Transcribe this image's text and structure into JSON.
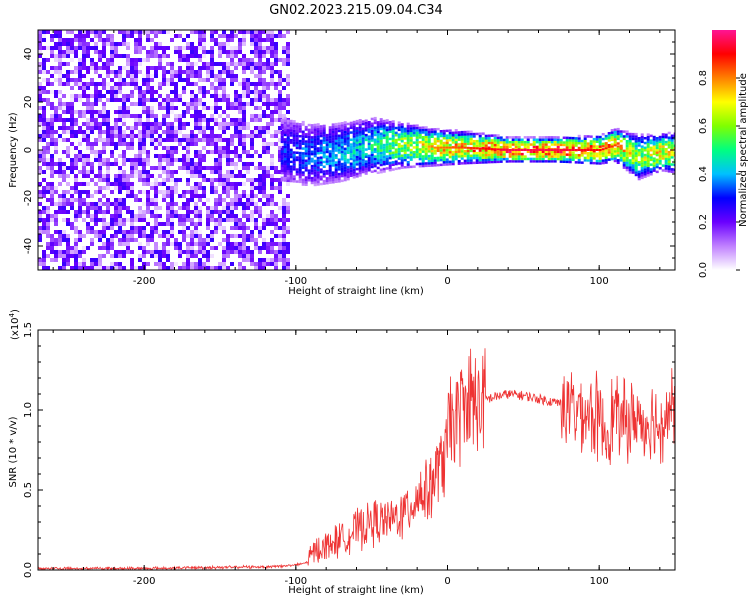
{
  "title": "GN02.2023.215.09.04.C34",
  "chart_data": [
    {
      "type": "heatmap",
      "xlabel": "Height of straight line (km)",
      "ylabel": "Frequency (Hz)",
      "xlim": [
        -270,
        150
      ],
      "ylim": [
        -50,
        50
      ],
      "x_ticks": [
        -200,
        -100,
        0,
        100
      ],
      "y_ticks": [
        -40,
        -20,
        0,
        20,
        40
      ],
      "colorbar": {
        "label": "Normalized spectral amplitude",
        "range": [
          0,
          1
        ],
        "ticks": [
          "0.0",
          "0.2",
          "0.4",
          "0.6",
          "0.8"
        ],
        "colors": [
          "#ffffff",
          "#c080ff",
          "#6a00ff",
          "#0000ff",
          "#00c0ff",
          "#00ff80",
          "#80ff00",
          "#ffff00",
          "#ff8000",
          "#ff0000",
          "#ff1493"
        ]
      },
      "noise_region": {
        "x": [
          -270,
          -105
        ],
        "freq": [
          -50,
          50
        ],
        "amplitude": [
          0.0,
          0.25
        ]
      },
      "signal_track": [
        {
          "x": -110,
          "freq": 0,
          "amplitude": 0.3
        },
        {
          "x": -90,
          "freq": -2,
          "amplitude": 0.35
        },
        {
          "x": -70,
          "freq": -1,
          "amplitude": 0.4
        },
        {
          "x": -50,
          "freq": 2,
          "amplitude": 0.45
        },
        {
          "x": -30,
          "freq": 2,
          "amplitude": 0.6
        },
        {
          "x": -10,
          "freq": 1,
          "amplitude": 0.7
        },
        {
          "x": 10,
          "freq": 1,
          "amplitude": 0.75
        },
        {
          "x": 40,
          "freq": 0,
          "amplitude": 0.85
        },
        {
          "x": 70,
          "freq": 0,
          "amplitude": 0.85
        },
        {
          "x": 100,
          "freq": 0,
          "amplitude": 0.8
        },
        {
          "x": 110,
          "freq": 2,
          "amplitude": 0.75
        },
        {
          "x": 125,
          "freq": -3,
          "amplitude": 0.6
        },
        {
          "x": 140,
          "freq": -1,
          "amplitude": 0.7
        },
        {
          "x": 150,
          "freq": -1,
          "amplitude": 0.65
        }
      ]
    },
    {
      "type": "line",
      "xlabel": "Height of straight line (km)",
      "ylabel": "SNR (10 * v/v)",
      "y_multiplier": "(x10",
      "y_multiplier_exp": "4",
      "xlim": [
        -270,
        150
      ],
      "ylim": [
        0,
        1.5
      ],
      "x_ticks": [
        -200,
        -100,
        0,
        100
      ],
      "y_ticks": [
        "0.0",
        "0.5",
        "1.0",
        "1.5"
      ],
      "line_color": "#ee3333",
      "series": [
        {
          "x": [
            -270,
            -240,
            -200,
            -160,
            -120,
            -100,
            -92,
            -88,
            -80,
            -70,
            -60,
            -50,
            -40,
            -30,
            -20,
            -10,
            -5,
            0,
            5,
            10,
            20,
            30,
            40,
            50,
            60,
            70,
            80,
            90,
            100,
            105,
            110,
            115,
            120,
            125,
            130,
            135,
            140,
            145,
            150
          ],
          "y": [
            0.01,
            0.01,
            0.01,
            0.015,
            0.02,
            0.03,
            0.05,
            0.12,
            0.15,
            0.2,
            0.25,
            0.3,
            0.3,
            0.35,
            0.45,
            0.55,
            0.65,
            0.8,
            0.95,
            1.0,
            1.05,
            1.08,
            1.1,
            1.09,
            1.07,
            1.05,
            1.03,
            1.0,
            0.95,
            0.85,
            1.0,
            0.92,
            0.93,
            0.95,
            0.92,
            0.95,
            0.9,
            1.0,
            1.0
          ]
        }
      ]
    }
  ]
}
